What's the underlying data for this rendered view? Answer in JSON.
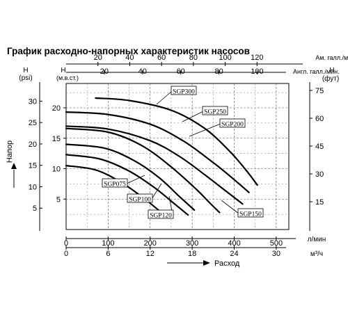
{
  "title": "График расходно-напорных характеристик насосов",
  "chart_data": {
    "type": "line",
    "title": "График расходно-напорных характеристик насосов",
    "left_axis_psi": {
      "label_letter": "H",
      "unit": "(psi)",
      "ticks": [
        5,
        10,
        15,
        20,
        25,
        30
      ]
    },
    "left_axis_m": {
      "label_letter": "H",
      "unit": "(м.в.ст.)",
      "ticks": [
        5,
        10,
        15,
        20
      ],
      "ylim": [
        0,
        24
      ]
    },
    "right_axis_ft": {
      "label_letter": "H",
      "unit": "(фут)",
      "ticks": [
        15,
        30,
        45,
        60,
        75
      ]
    },
    "ylabel": "Напор",
    "xlabel": "Расход",
    "top_axis_us_gal": {
      "unit": "Ам. галл./мин.",
      "ticks": [
        20,
        40,
        60,
        80,
        100,
        120
      ]
    },
    "top_axis_imp_gal": {
      "unit": "Англ. галл./мин.",
      "ticks": [
        20,
        40,
        60,
        80,
        100
      ]
    },
    "bottom_axis_lpm": {
      "unit": "л/мин",
      "ticks": [
        0,
        100,
        200,
        300,
        400,
        500
      ],
      "xlim": [
        0,
        530
      ]
    },
    "bottom_axis_m3h": {
      "unit": "м³/ч",
      "ticks": [
        0,
        6,
        12,
        18,
        24,
        30
      ]
    },
    "grid": true,
    "x_unit": "л/мин",
    "y_unit": "м.в.ст.",
    "series": [
      {
        "name": "SGP300",
        "x": [
          70,
          150,
          250,
          330,
          390,
          430,
          455
        ],
        "y": [
          21.6,
          21.2,
          19.6,
          16.6,
          12.8,
          9.6,
          7.3
        ]
      },
      {
        "name": "SGP250",
        "x": [
          0,
          100,
          200,
          280,
          350,
          400,
          435
        ],
        "y": [
          19.3,
          18.9,
          17.3,
          14.5,
          11.0,
          8.2,
          6.1
        ]
      },
      {
        "name": "SGP200",
        "x": [
          0,
          100,
          200,
          270,
          330,
          375,
          420
        ],
        "y": [
          17.0,
          16.5,
          14.6,
          12.0,
          9.0,
          6.6,
          4.2
        ]
      },
      {
        "name": "SGP150",
        "x": [
          0,
          100,
          180,
          250,
          310,
          340,
          365
        ],
        "y": [
          16.6,
          16.0,
          13.8,
          10.3,
          6.6,
          4.5,
          2.8
        ]
      },
      {
        "name": "SGP120",
        "x": [
          0,
          90,
          160,
          220,
          270,
          305
        ],
        "y": [
          14.0,
          13.4,
          11.4,
          8.6,
          5.4,
          3.2
        ]
      },
      {
        "name": "SGP100",
        "x": [
          0,
          80,
          150,
          210,
          260,
          290
        ],
        "y": [
          12.3,
          11.6,
          9.6,
          6.9,
          4.1,
          2.4
        ]
      },
      {
        "name": "SGP075",
        "x": [
          0,
          70,
          130,
          180,
          220,
          245
        ],
        "y": [
          10.5,
          9.8,
          7.8,
          5.4,
          3.2,
          1.9
        ]
      }
    ]
  }
}
